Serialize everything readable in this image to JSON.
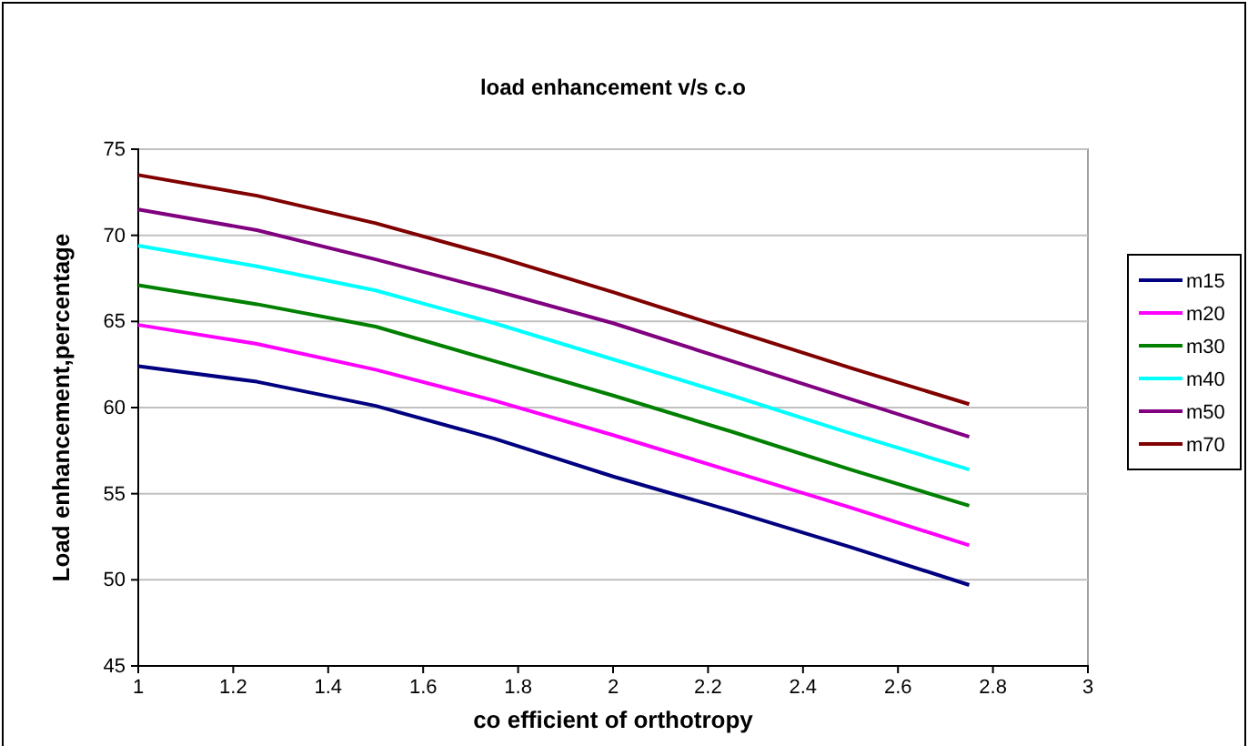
{
  "chart_data": {
    "type": "line",
    "title": "load enhancement v/s c.o",
    "xlabel": "co efficient of orthotropy",
    "ylabel": "Load enhancement,percentage",
    "x": [
      1,
      1.25,
      1.5,
      1.75,
      2,
      2.25,
      2.5,
      2.75
    ],
    "xlim": [
      1,
      3
    ],
    "xticks": [
      1,
      1.2,
      1.4,
      1.6,
      1.8,
      2,
      2.2,
      2.4,
      2.6,
      2.8,
      3
    ],
    "ylim": [
      45,
      75
    ],
    "yticks": [
      45,
      50,
      55,
      60,
      65,
      70,
      75
    ],
    "grid": "y",
    "legend": "right",
    "marker": "none",
    "line_style": "solid",
    "series": [
      {
        "name": "m15",
        "color": "#000080",
        "values": [
          62.4,
          61.5,
          60.1,
          58.2,
          56.0,
          54.0,
          51.9,
          49.7
        ]
      },
      {
        "name": "m20",
        "color": "#ff00ff",
        "values": [
          64.8,
          63.7,
          62.2,
          60.4,
          58.4,
          56.3,
          54.2,
          52.0
        ]
      },
      {
        "name": "m30",
        "color": "#008000",
        "values": [
          67.1,
          66.0,
          64.7,
          62.7,
          60.7,
          58.6,
          56.4,
          54.3
        ]
      },
      {
        "name": "m40",
        "color": "#00ffff",
        "values": [
          69.4,
          68.2,
          66.8,
          64.9,
          62.8,
          60.7,
          58.5,
          56.4
        ]
      },
      {
        "name": "m50",
        "color": "#800080",
        "values": [
          71.5,
          70.3,
          68.6,
          66.8,
          64.9,
          62.7,
          60.5,
          58.3
        ]
      },
      {
        "name": "m70",
        "color": "#800000",
        "values": [
          73.5,
          72.3,
          70.7,
          68.8,
          66.7,
          64.5,
          62.3,
          60.2
        ]
      }
    ]
  }
}
